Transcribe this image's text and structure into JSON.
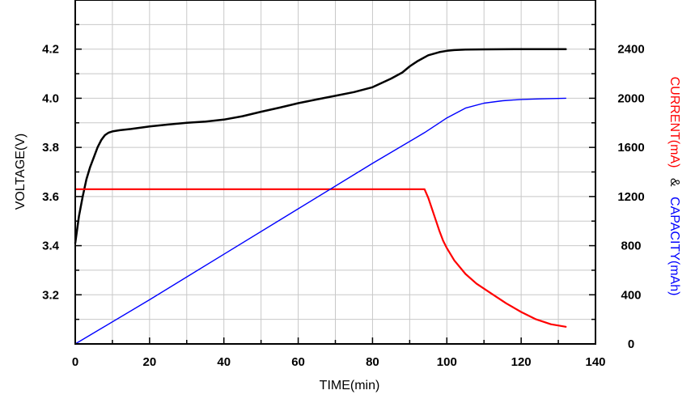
{
  "chart_data": {
    "type": "line",
    "xlabel": "TIME(min)",
    "ylabel_left": "VOLTAGE(V)",
    "ylabel_right": {
      "current": "CURRENT(mA)",
      "separator": "&",
      "capacity": "CAPACITY(mAh)"
    },
    "xlim": [
      0,
      140
    ],
    "ylim_left": [
      3.0,
      4.4
    ],
    "ylim_right": [
      0,
      2800
    ],
    "grid": true,
    "x_ticks": [
      "0",
      "20",
      "40",
      "60",
      "80",
      "100",
      "120",
      "140"
    ],
    "y_left_ticks": [
      "3.2",
      "3.4",
      "3.6",
      "3.8",
      "4.0",
      "4.2"
    ],
    "y_right_ticks": [
      "0",
      "400",
      "800",
      "1200",
      "1600",
      "2000",
      "2400"
    ],
    "colors": {
      "voltage": "#000000",
      "current": "#ff0000",
      "capacity": "#0000ff"
    },
    "series": [
      {
        "key": "voltage",
        "axis": "left",
        "x": [
          0,
          1,
          2,
          3,
          4,
          5,
          6,
          7,
          8,
          9,
          10,
          12,
          15,
          20,
          25,
          30,
          35,
          40,
          45,
          50,
          55,
          60,
          65,
          70,
          75,
          80,
          85,
          88,
          90,
          92,
          95,
          98,
          100,
          102,
          105,
          110,
          120,
          132
        ],
        "y": [
          3.41,
          3.52,
          3.6,
          3.67,
          3.72,
          3.76,
          3.8,
          3.83,
          3.85,
          3.86,
          3.865,
          3.87,
          3.875,
          3.885,
          3.893,
          3.9,
          3.905,
          3.913,
          3.927,
          3.945,
          3.962,
          3.98,
          3.995,
          4.01,
          4.025,
          4.045,
          4.08,
          4.105,
          4.13,
          4.15,
          4.175,
          4.188,
          4.193,
          4.196,
          4.198,
          4.199,
          4.2,
          4.2
        ]
      },
      {
        "key": "current",
        "axis": "right",
        "x": [
          0,
          94,
          95,
          96,
          97,
          98,
          99,
          100,
          102,
          105,
          108,
          112,
          116,
          120,
          124,
          128,
          132
        ],
        "y": [
          1260,
          1260,
          1190,
          1100,
          1010,
          920,
          840,
          780,
          680,
          570,
          490,
          410,
          330,
          260,
          200,
          160,
          140
        ]
      },
      {
        "key": "capacity",
        "axis": "right",
        "x": [
          0,
          20,
          40,
          60,
          80,
          94,
          98,
          100,
          105,
          110,
          115,
          120,
          125,
          132
        ],
        "y": [
          0,
          360,
          730,
          1100,
          1470,
          1720,
          1800,
          1840,
          1920,
          1960,
          1980,
          1990,
          1995,
          2000
        ]
      }
    ]
  }
}
